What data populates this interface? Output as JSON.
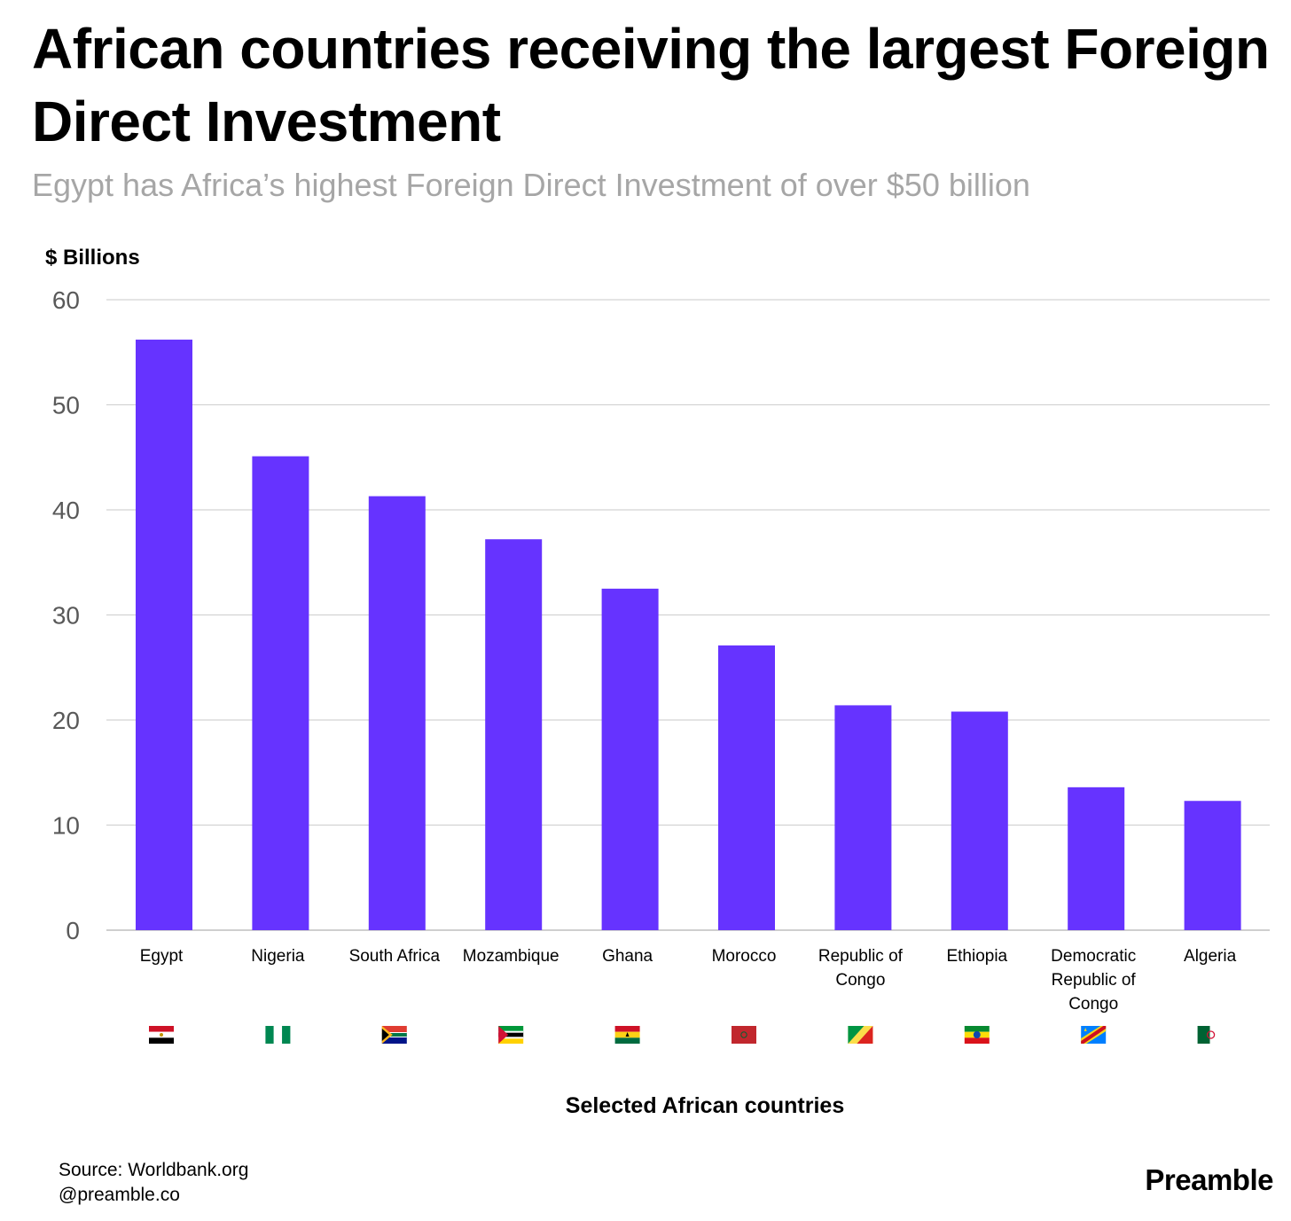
{
  "header": {
    "title": "African countries receiving the largest Foreign Direct Investment",
    "subtitle": "Egypt has Africa’s highest Foreign Direct Investment of over $50 billion"
  },
  "footer": {
    "source": "Source: Worldbank.org",
    "handle": "@preamble.co",
    "brand": "Preamble"
  },
  "colors": {
    "bar": "#6633ff",
    "grid": "#d3d3d3",
    "tick_text": "#595959"
  },
  "chart_data": {
    "type": "bar",
    "title": "African countries receiving the largest Foreign Direct Investment",
    "subtitle": "Egypt has Africa’s highest Foreign Direct Investment of over $50 billion",
    "ylabel": "$ Billions",
    "xlabel": "Selected African countries",
    "ylim": [
      0,
      60
    ],
    "yticks": [
      0,
      10,
      20,
      30,
      40,
      50,
      60
    ],
    "grid": true,
    "categories": [
      "Egypt",
      "Nigeria",
      "South Africa",
      "Mozambique",
      "Ghana",
      "Morocco",
      "Republic of Congo",
      "Ethiopia",
      "Democratic Republic of Congo",
      "Algeria"
    ],
    "category_lines": [
      [
        "Egypt"
      ],
      [
        "Nigeria"
      ],
      [
        "South Africa"
      ],
      [
        "Mozambique"
      ],
      [
        "Ghana"
      ],
      [
        "Morocco"
      ],
      [
        "Republic of",
        "Congo"
      ],
      [
        "Ethiopia"
      ],
      [
        "Democratic",
        "Republic of",
        "Congo"
      ],
      [
        "Algeria"
      ]
    ],
    "flags": [
      "egypt",
      "nigeria",
      "south-africa",
      "mozambique",
      "ghana",
      "morocco",
      "republic-of-congo",
      "ethiopia",
      "dr-congo",
      "algeria"
    ],
    "values": [
      56.2,
      45.1,
      41.3,
      37.2,
      32.5,
      27.1,
      21.4,
      20.8,
      13.6,
      12.3
    ]
  }
}
